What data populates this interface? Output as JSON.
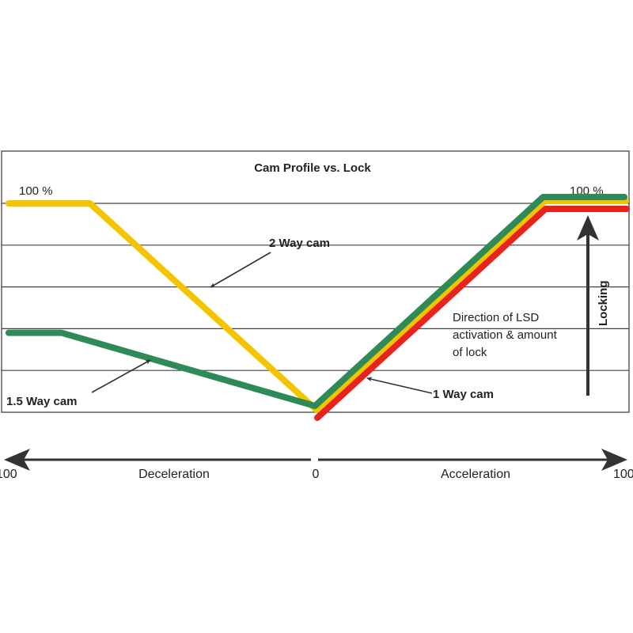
{
  "title": "Cam Profile vs. Lock",
  "labels": {
    "top_left_max": "100 %",
    "top_right_max": "100 %",
    "two_way": "2 Way cam",
    "one_five_way": "1.5 Way cam",
    "one_way": "1 Way cam",
    "direction_lines": [
      "Direction of LSD",
      "activation & amount",
      "of lock"
    ],
    "locking": "Locking",
    "axis_left": "Deceleration",
    "axis_right": "Acceleration",
    "axis_left_end": "100",
    "axis_zero": "0",
    "axis_right_end": "100"
  },
  "chart_data": {
    "type": "line",
    "title": "Cam Profile vs. Lock",
    "xlabel_left": "Deceleration",
    "xlabel_right": "Acceleration",
    "xlim": [
      -100,
      100
    ],
    "ylim": [
      0,
      100
    ],
    "y_unit": "%",
    "grid": true,
    "series": [
      {
        "name": "2 Way cam",
        "color": "#f5c400",
        "points": [
          [
            -98,
            100
          ],
          [
            -72,
            100
          ],
          [
            0,
            0
          ],
          [
            73,
            100
          ],
          [
            99,
            100
          ]
        ]
      },
      {
        "name": "1.5 Way cam",
        "color": "#2e8b57",
        "points": [
          [
            -98,
            38
          ],
          [
            -81,
            38
          ],
          [
            0,
            0
          ],
          [
            73,
            100
          ],
          [
            99,
            100
          ]
        ]
      },
      {
        "name": "1 Way cam",
        "color": "#e8231e",
        "points": [
          [
            0,
            0
          ],
          [
            73,
            100
          ],
          [
            99,
            100
          ]
        ]
      }
    ]
  }
}
